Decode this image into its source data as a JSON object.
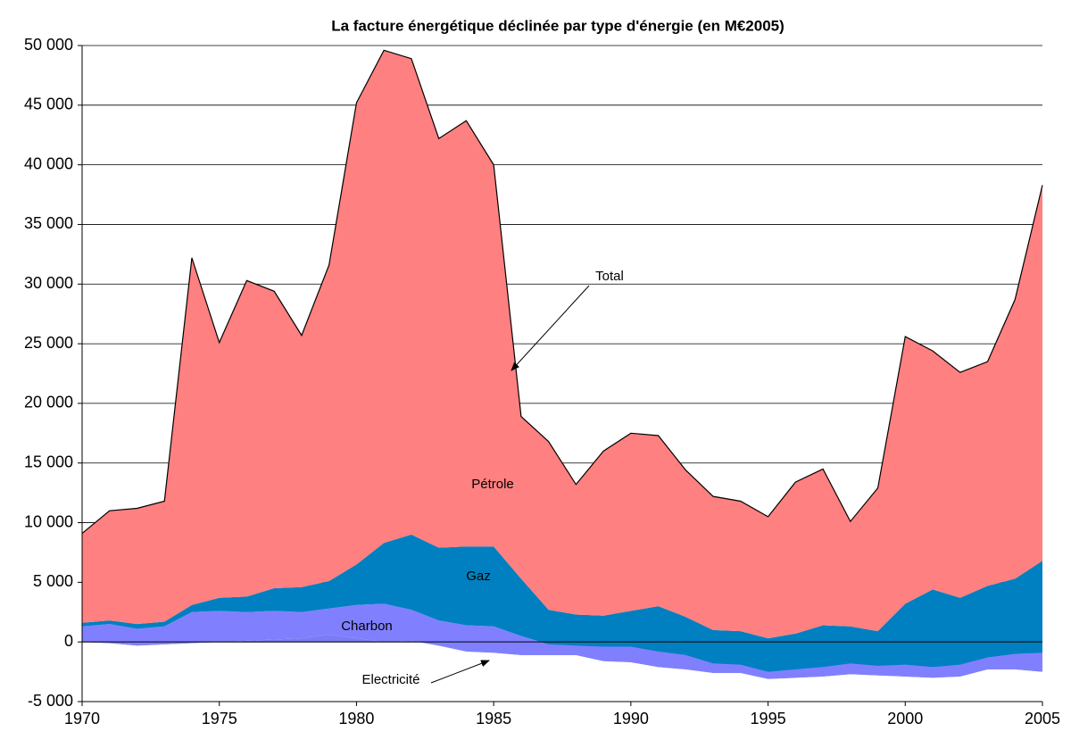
{
  "chart_data": {
    "type": "stacked-area",
    "title": "La facture énergétique déclinée par type d'énergie (en M€2005)",
    "x": [
      1970,
      1971,
      1972,
      1973,
      1974,
      1975,
      1976,
      1977,
      1978,
      1979,
      1980,
      1981,
      1982,
      1983,
      1984,
      1985,
      1986,
      1987,
      1988,
      1989,
      1990,
      1991,
      1992,
      1993,
      1994,
      1995,
      1996,
      1997,
      1998,
      1999,
      2000,
      2001,
      2002,
      2003,
      2004,
      2005
    ],
    "xlim": [
      1970,
      2005
    ],
    "xticks": [
      1970,
      1975,
      1980,
      1985,
      1990,
      1995,
      2000,
      2005
    ],
    "ylim": [
      -5000,
      50000
    ],
    "yticks": [
      {
        "value": -5000,
        "label": "-5 000"
      },
      0,
      {
        "value": 5000,
        "label": "5 000"
      },
      {
        "value": 10000,
        "label": "10 000"
      },
      {
        "value": 15000,
        "label": "15 000"
      },
      {
        "value": 20000,
        "label": "20 000"
      },
      {
        "value": 25000,
        "label": "25 000"
      },
      {
        "value": 30000,
        "label": "30 000"
      },
      {
        "value": 35000,
        "label": "35 000"
      },
      {
        "value": 40000,
        "label": "40 000"
      },
      {
        "value": 45000,
        "label": "45 000"
      },
      {
        "value": 50000,
        "label": "50 000"
      }
    ],
    "grid": true,
    "annotation": "Total",
    "series": [
      {
        "name": "Electricité",
        "color": "#7b7bf5",
        "values": [
          0,
          -100,
          -300,
          -200,
          -100,
          0,
          100,
          200,
          300,
          600,
          300,
          0,
          100,
          -300,
          -800,
          -900,
          -1100,
          -1100,
          -1100,
          -1600,
          -1700,
          -2100,
          -2300,
          -2600,
          -2600,
          -3100,
          -3000,
          -2900,
          -2700,
          -2800,
          -2900,
          -3000,
          -2900,
          -2300,
          -2300,
          -2500
        ]
      },
      {
        "name": "Charbon",
        "color": "#8080ff",
        "values": [
          1300,
          1600,
          1400,
          1500,
          2600,
          2600,
          2400,
          2400,
          2200,
          2200,
          2800,
          3200,
          2600,
          2100,
          2200,
          2200,
          1600,
          900,
          800,
          1200,
          1300,
          1300,
          1200,
          800,
          700,
          600,
          700,
          800,
          900,
          800,
          1000,
          900,
          1000,
          1000,
          1300,
          1600
        ]
      },
      {
        "name": "Gaz",
        "color": "#0080c0",
        "values": [
          300,
          300,
          400,
          400,
          600,
          1100,
          1300,
          1900,
          2100,
          2300,
          3400,
          5100,
          6300,
          6100,
          6600,
          6700,
          4800,
          2900,
          2600,
          2600,
          3000,
          3800,
          3200,
          2800,
          2800,
          2800,
          3000,
          3500,
          3100,
          2900,
          5100,
          6500,
          5600,
          6000,
          6300,
          7700
        ]
      },
      {
        "name": "Pétrole",
        "color": "#ff8080",
        "values": [
          7500,
          9200,
          9700,
          10100,
          29100,
          21400,
          26500,
          24900,
          21100,
          26500,
          38700,
          41300,
          39900,
          34300,
          35700,
          32000,
          13600,
          14100,
          10900,
          13800,
          14900,
          14300,
          12300,
          11200,
          10900,
          10200,
          12700,
          13100,
          8800,
          12000,
          22400,
          20000,
          18900,
          18800,
          23400,
          31500
        ]
      }
    ]
  }
}
